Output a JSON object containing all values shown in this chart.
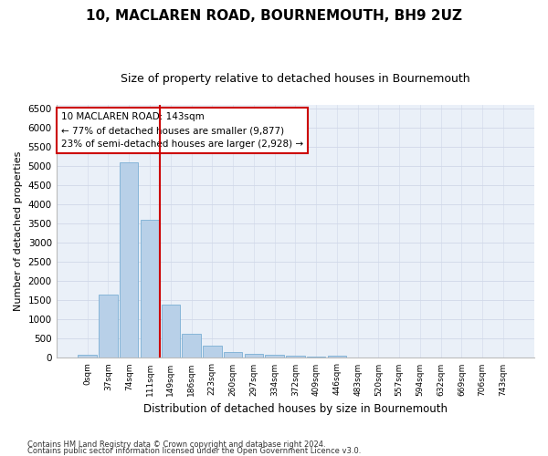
{
  "title": "10, MACLAREN ROAD, BOURNEMOUTH, BH9 2UZ",
  "subtitle": "Size of property relative to detached houses in Bournemouth",
  "xlabel": "Distribution of detached houses by size in Bournemouth",
  "ylabel": "Number of detached properties",
  "footnote1": "Contains HM Land Registry data © Crown copyright and database right 2024.",
  "footnote2": "Contains public sector information licensed under the Open Government Licence v3.0.",
  "bar_labels": [
    "0sqm",
    "37sqm",
    "74sqm",
    "111sqm",
    "149sqm",
    "186sqm",
    "223sqm",
    "260sqm",
    "297sqm",
    "334sqm",
    "372sqm",
    "409sqm",
    "446sqm",
    "483sqm",
    "520sqm",
    "557sqm",
    "594sqm",
    "632sqm",
    "669sqm",
    "706sqm",
    "743sqm"
  ],
  "bar_values": [
    75,
    1640,
    5090,
    3600,
    1400,
    620,
    310,
    155,
    105,
    70,
    55,
    45,
    55,
    0,
    0,
    0,
    0,
    0,
    0,
    0,
    0
  ],
  "bar_color": "#b8d0e8",
  "bar_edge_color": "#7aafd4",
  "vline_x": 3.5,
  "vline_color": "#cc0000",
  "annotation_text": "10 MACLAREN ROAD: 143sqm\n← 77% of detached houses are smaller (9,877)\n23% of semi-detached houses are larger (2,928) →",
  "annotation_box_color": "#ffffff",
  "annotation_box_edge": "#cc0000",
  "ylim": [
    0,
    6600
  ],
  "yticks": [
    0,
    500,
    1000,
    1500,
    2000,
    2500,
    3000,
    3500,
    4000,
    4500,
    5000,
    5500,
    6000,
    6500
  ],
  "grid_color": "#d0d8e8",
  "bg_color": "#eaf0f8",
  "title_fontsize": 11,
  "subtitle_fontsize": 9,
  "annotation_fontsize": 7.5,
  "ylabel_fontsize": 8,
  "xlabel_fontsize": 8.5
}
